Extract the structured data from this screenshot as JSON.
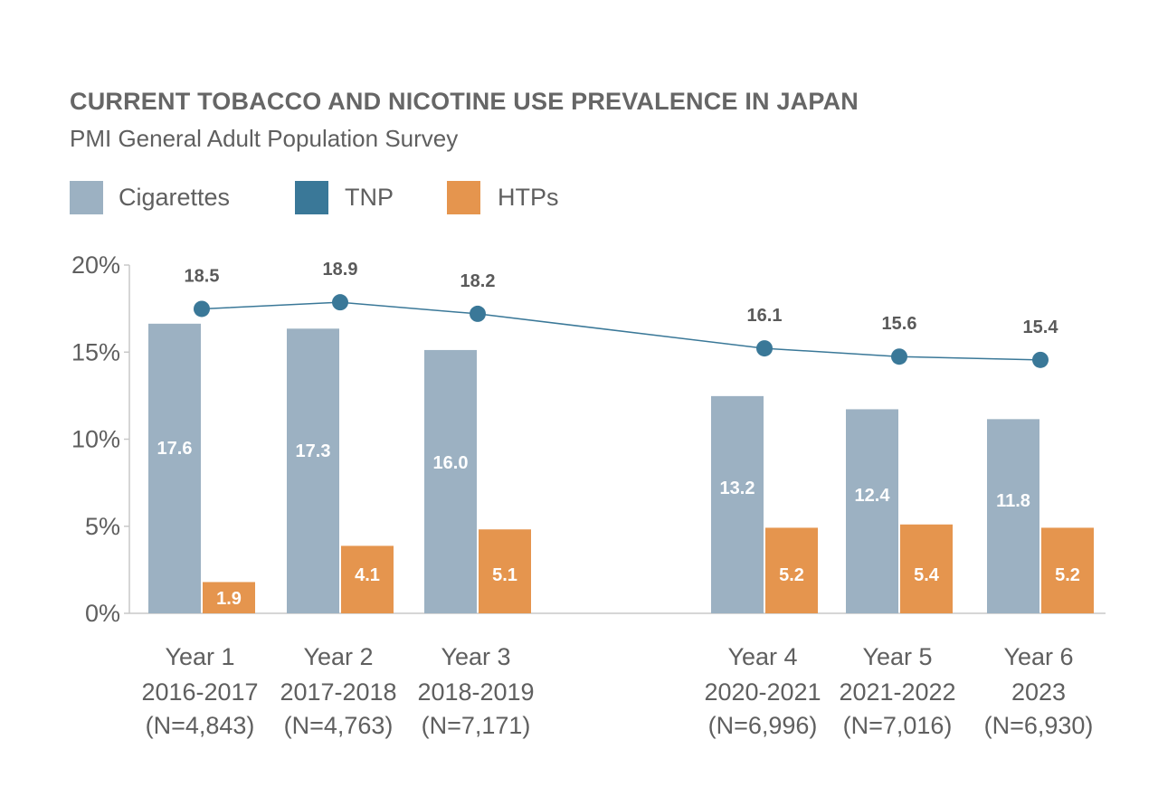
{
  "title": "CURRENT TOBACCO AND NICOTINE USE PREVALENCE IN JAPAN",
  "subtitle": "PMI General Adult Population Survey",
  "legend": [
    {
      "label": "Cigarettes",
      "color": "#9cb1c2"
    },
    {
      "label": "TNP",
      "color": "#3a7898"
    },
    {
      "label": "HTPs",
      "color": "#e5954e"
    }
  ],
  "chart_data": {
    "type": "bar",
    "ylim": [
      0,
      20
    ],
    "yticks": [
      "0%",
      "5%",
      "10%",
      "15%",
      "20%"
    ],
    "ytick_values": [
      0,
      5,
      10,
      15,
      20
    ],
    "categories": [
      {
        "year": "Year 1",
        "period": "2016-2017",
        "n": "(N=4,843)"
      },
      {
        "year": "Year 2",
        "period": "2017-2018",
        "n": "(N=4,763)"
      },
      {
        "year": "Year 3",
        "period": "2018-2019",
        "n": "(N=7,171)"
      },
      {
        "year": "Year 4",
        "period": "2020-2021",
        "n": "(N=6,996)"
      },
      {
        "year": "Year 5",
        "period": "2021-2022",
        "n": "(N=7,016)"
      },
      {
        "year": "Year 6",
        "period": "2023",
        "n": "(N=6,930)"
      }
    ],
    "series": [
      {
        "name": "Cigarettes",
        "kind": "bar",
        "color": "#9cb1c2",
        "values": [
          17.6,
          17.3,
          16.0,
          13.2,
          12.4,
          11.8
        ],
        "labels": [
          "17.6",
          "17.3",
          "16.0",
          "13.2",
          "12.4",
          "11.8"
        ]
      },
      {
        "name": "HTPs",
        "kind": "bar",
        "color": "#e5954e",
        "values": [
          1.9,
          4.1,
          5.1,
          5.2,
          5.4,
          5.2
        ],
        "labels": [
          "1.9",
          "4.1",
          "5.1",
          "5.2",
          "5.4",
          "5.2"
        ]
      },
      {
        "name": "TNP",
        "kind": "line",
        "color": "#3a7898",
        "values": [
          18.5,
          18.9,
          18.2,
          16.1,
          15.6,
          15.4
        ],
        "labels": [
          "18.5",
          "18.9",
          "18.2",
          "16.1",
          "15.6",
          "15.4"
        ]
      }
    ],
    "grid": false,
    "legend_position": "top-left"
  }
}
